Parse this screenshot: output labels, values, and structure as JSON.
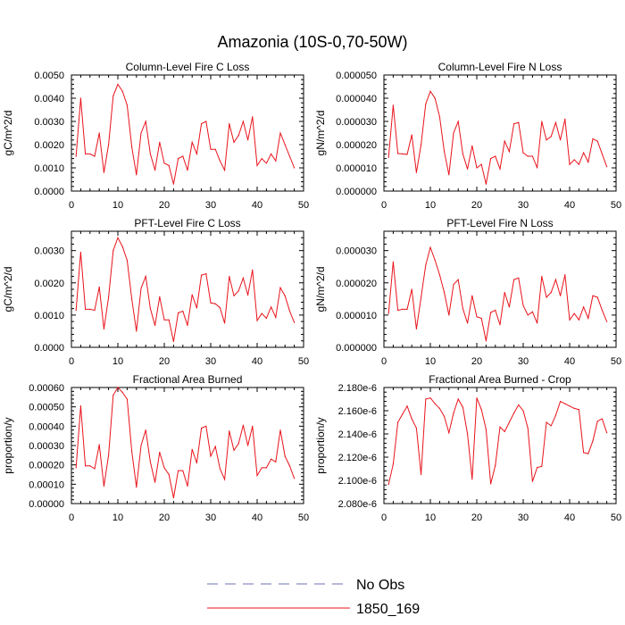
{
  "figure_title": "Amazonia (10S-0,70-50W)",
  "legend": [
    {
      "label": "No Obs",
      "color": "#6b6fb5",
      "dash": true
    },
    {
      "label": "1850_169",
      "color": "#e8131b",
      "dash": false
    }
  ],
  "chart_data": [
    {
      "type": "line",
      "title": "Column-Level Fire C Loss",
      "ylabel": "gC/m^2/d",
      "xlim": [
        0,
        50
      ],
      "ylim": [
        0,
        0.005
      ],
      "xticks": [
        0,
        10,
        20,
        30,
        40,
        50
      ],
      "yticks": [
        0,
        0.001,
        0.002,
        0.003,
        0.004,
        0.005
      ],
      "ytick_labels": [
        "0.0000",
        "0.0010",
        "0.0020",
        "0.0030",
        "0.0040",
        "0.0050"
      ],
      "series": [
        {
          "name": "1850_169",
          "color": "#e8131b",
          "x": [
            1,
            2,
            3,
            4,
            5,
            6,
            7,
            8,
            9,
            10,
            11,
            12,
            13,
            14,
            15,
            16,
            17,
            18,
            19,
            20,
            21,
            22,
            23,
            24,
            25,
            26,
            27,
            28,
            29,
            30,
            31,
            32,
            33,
            34,
            35,
            36,
            37,
            38,
            39,
            40,
            41,
            42,
            43,
            44,
            45,
            46,
            47,
            48
          ],
          "values": [
            0.0015,
            0.004,
            0.0016,
            0.0016,
            0.0015,
            0.0025,
            0.0008,
            0.002,
            0.0041,
            0.0046,
            0.0043,
            0.0037,
            0.0019,
            0.0007,
            0.0025,
            0.003,
            0.0016,
            0.0009,
            0.0021,
            0.0012,
            0.0011,
            0.0003,
            0.0014,
            0.0015,
            0.0009,
            0.0021,
            0.0016,
            0.0029,
            0.003,
            0.0018,
            0.0018,
            0.0013,
            0.0009,
            0.0029,
            0.0021,
            0.0024,
            0.003,
            0.0022,
            0.0032,
            0.0011,
            0.0014,
            0.0012,
            0.0016,
            0.0013,
            0.0025,
            0.002,
            0.0015,
            0.001
          ]
        }
      ]
    },
    {
      "type": "line",
      "title": "Column-Level Fire N Loss",
      "ylabel": "gN/m^2/d",
      "xlim": [
        0,
        50
      ],
      "ylim": [
        0,
        5e-05
      ],
      "xticks": [
        0,
        10,
        20,
        30,
        40,
        50
      ],
      "yticks": [
        0,
        1e-05,
        2e-05,
        3e-05,
        4e-05,
        5e-05
      ],
      "ytick_labels": [
        "0.000000",
        "0.000010",
        "0.000020",
        "0.000030",
        "0.000040",
        "0.000050"
      ],
      "series": [
        {
          "name": "1850_169",
          "color": "#e8131b",
          "x": [
            1,
            2,
            3,
            4,
            5,
            6,
            7,
            8,
            9,
            10,
            11,
            12,
            13,
            14,
            15,
            16,
            17,
            18,
            19,
            20,
            21,
            22,
            23,
            24,
            25,
            26,
            27,
            28,
            29,
            30,
            31,
            32,
            33,
            34,
            35,
            36,
            37,
            38,
            39,
            40,
            41,
            42,
            43,
            44,
            45,
            46,
            47,
            48
          ],
          "values": [
            1.45e-05,
            3.7e-05,
            1.62e-05,
            1.6e-05,
            1.58e-05,
            2.42e-05,
            8e-06,
            2e-05,
            3.75e-05,
            4.3e-05,
            4e-05,
            3.2e-05,
            1.7e-05,
            7e-06,
            2.5e-05,
            3e-05,
            1.6e-05,
            9.5e-06,
            1.95e-05,
            1e-05,
            1.15e-05,
            3e-06,
            1.4e-05,
            1.5e-05,
            9.5e-06,
            2.15e-05,
            1.7e-05,
            2.9e-05,
            2.95e-05,
            1.65e-05,
            1.5e-05,
            1.5e-05,
            1e-05,
            3e-05,
            2.2e-05,
            2.35e-05,
            2.95e-05,
            2.2e-05,
            3.1e-05,
            1.15e-05,
            1.35e-05,
            1.15e-05,
            1.65e-05,
            1.25e-05,
            2.25e-05,
            2.15e-05,
            1.6e-05,
            1.05e-05
          ]
        }
      ]
    },
    {
      "type": "line",
      "title": "PFT-Level Fire C Loss",
      "ylabel": "gC/m^2/d",
      "xlim": [
        0,
        50
      ],
      "ylim": [
        0,
        0.0036
      ],
      "xticks": [
        0,
        10,
        20,
        30,
        40,
        50
      ],
      "yticks": [
        0,
        0.001,
        0.002,
        0.003
      ],
      "ytick_labels": [
        "0.0000",
        "0.0010",
        "0.0020",
        "0.0030"
      ],
      "series": [
        {
          "name": "1850_169",
          "color": "#e8131b",
          "x": [
            1,
            2,
            3,
            4,
            5,
            6,
            7,
            8,
            9,
            10,
            11,
            12,
            13,
            14,
            15,
            16,
            17,
            18,
            19,
            20,
            21,
            22,
            23,
            24,
            25,
            26,
            27,
            28,
            29,
            30,
            31,
            32,
            33,
            34,
            35,
            36,
            37,
            38,
            39,
            40,
            41,
            42,
            43,
            44,
            45,
            46,
            47,
            48
          ],
          "values": [
            0.00115,
            0.00295,
            0.00118,
            0.00118,
            0.00115,
            0.00187,
            0.00057,
            0.00155,
            0.003,
            0.0034,
            0.00312,
            0.0027,
            0.0015,
            0.0005,
            0.00183,
            0.0022,
            0.0012,
            0.00068,
            0.00157,
            0.00085,
            0.00085,
            0.00018,
            0.00107,
            0.00112,
            0.00068,
            0.00163,
            0.00122,
            0.00224,
            0.00228,
            0.00138,
            0.00135,
            0.00123,
            0.00075,
            0.0022,
            0.0016,
            0.00175,
            0.00215,
            0.00162,
            0.0024,
            0.00083,
            0.00105,
            0.0009,
            0.00125,
            0.00093,
            0.00185,
            0.0016,
            0.00113,
            0.00077
          ]
        }
      ]
    },
    {
      "type": "line",
      "title": "PFT-Level Fire N Loss",
      "ylabel": "gN/m^2/d",
      "xlim": [
        0,
        50
      ],
      "ylim": [
        0,
        3.6e-05
      ],
      "xticks": [
        0,
        10,
        20,
        30,
        40,
        50
      ],
      "yticks": [
        0,
        1e-05,
        2e-05,
        3e-05
      ],
      "ytick_labels": [
        "0.000000",
        "0.000010",
        "0.000020",
        "0.000030"
      ],
      "series": [
        {
          "name": "1850_169",
          "color": "#e8131b",
          "x": [
            1,
            2,
            3,
            4,
            5,
            6,
            7,
            8,
            9,
            10,
            11,
            12,
            13,
            14,
            15,
            16,
            17,
            18,
            19,
            20,
            21,
            22,
            23,
            24,
            25,
            26,
            27,
            28,
            29,
            30,
            31,
            32,
            33,
            34,
            35,
            36,
            37,
            38,
            39,
            40,
            41,
            42,
            43,
            44,
            45,
            46,
            47,
            48
          ],
          "values": [
            1.05e-05,
            2.65e-05,
            1.15e-05,
            1.18e-05,
            1.18e-05,
            1.8e-05,
            5.7e-06,
            1.55e-05,
            2.55e-05,
            3.1e-05,
            2.7e-05,
            2.25e-05,
            1.7e-05,
            1e-05,
            1.95e-05,
            2.1e-05,
            1.2e-05,
            7.5e-06,
            1.6e-05,
            9.5e-06,
            9e-06,
            2e-06,
            1.08e-05,
            1.15e-05,
            7e-06,
            1.7e-05,
            1.25e-05,
            2.1e-05,
            2.15e-05,
            1.3e-05,
            1e-05,
            1.1e-05,
            7.5e-06,
            2.2e-05,
            1.55e-05,
            1.7e-05,
            2.1e-05,
            1.6e-05,
            2.25e-05,
            8.5e-06,
            1.05e-05,
            8.5e-06,
            1.25e-05,
            9e-06,
            1.6e-05,
            1.55e-05,
            1.15e-05,
            8e-06
          ]
        }
      ]
    },
    {
      "type": "line",
      "title": "Fractional Area Burned",
      "ylabel": "proportion/y",
      "xlim": [
        0,
        50
      ],
      "ylim": [
        0,
        0.0006
      ],
      "xticks": [
        0,
        10,
        20,
        30,
        40,
        50
      ],
      "yticks": [
        0,
        0.0001,
        0.0002,
        0.0003,
        0.0004,
        0.0005,
        0.0006
      ],
      "ytick_labels": [
        "0.00000",
        "0.00010",
        "0.00020",
        "0.00030",
        "0.00040",
        "0.00050",
        "0.00060"
      ],
      "series": [
        {
          "name": "1850_169",
          "color": "#e8131b",
          "x": [
            1,
            2,
            3,
            4,
            5,
            6,
            7,
            8,
            9,
            10,
            11,
            12,
            13,
            14,
            15,
            16,
            17,
            18,
            19,
            20,
            21,
            22,
            23,
            24,
            25,
            26,
            27,
            28,
            29,
            30,
            31,
            32,
            33,
            34,
            35,
            36,
            37,
            38,
            39,
            40,
            41,
            42,
            43,
            44,
            45,
            46,
            47,
            48
          ],
          "values": [
            0.000185,
            0.000505,
            0.000195,
            0.000195,
            0.00018,
            0.000305,
            9e-05,
            0.00025,
            0.00056,
            0.0006,
            0.000575,
            0.00054,
            0.00027,
            8.5e-05,
            0.0003,
            0.00038,
            0.000215,
            0.00011,
            0.000265,
            0.000185,
            0.00015,
            3e-05,
            0.00017,
            0.00017,
            9e-05,
            0.00028,
            0.00021,
            0.00039,
            0.0004,
            0.000245,
            0.000295,
            0.00018,
            0.000125,
            0.000375,
            0.000275,
            0.00031,
            0.000405,
            0.0003,
            0.0004,
            0.000145,
            0.000185,
            0.000185,
            0.00023,
            0.000215,
            0.00038,
            0.000245,
            0.000195,
            0.00013
          ]
        }
      ]
    },
    {
      "type": "line",
      "title": "Fractional Area Burned - Crop",
      "ylabel": "proportion/y",
      "xlim": [
        0,
        50
      ],
      "ylim": [
        2.08e-06,
        2.18e-06
      ],
      "xticks": [
        0,
        10,
        20,
        30,
        40,
        50
      ],
      "yticks": [
        2.08e-06,
        2.1e-06,
        2.12e-06,
        2.14e-06,
        2.16e-06,
        2.18e-06
      ],
      "ytick_labels": [
        "2.080e-6",
        "2.100e-6",
        "2.120e-6",
        "2.140e-6",
        "2.160e-6",
        "2.180e-6"
      ],
      "series": [
        {
          "name": "1850_169",
          "color": "#e8131b",
          "x": [
            1,
            2,
            3,
            4,
            5,
            6,
            7,
            8,
            9,
            10,
            11,
            12,
            13,
            14,
            15,
            16,
            17,
            18,
            19,
            20,
            21,
            22,
            23,
            24,
            25,
            26,
            27,
            28,
            29,
            30,
            31,
            32,
            33,
            34,
            35,
            36,
            37,
            38,
            39,
            40,
            41,
            42,
            43,
            44,
            45,
            46,
            47,
            48
          ],
          "values": [
            2.0965e-06,
            2.114e-06,
            2.15e-06,
            2.157e-06,
            2.164e-06,
            2.153e-06,
            2.145e-06,
            2.105e-06,
            2.17e-06,
            2.171e-06,
            2.166e-06,
            2.162e-06,
            2.155e-06,
            2.141e-06,
            2.158e-06,
            2.17e-06,
            2.163e-06,
            2.14e-06,
            2.101e-06,
            2.171e-06,
            2.161e-06,
            2.144e-06,
            2.097e-06,
            2.113e-06,
            2.146e-06,
            2.142e-06,
            2.15e-06,
            2.158e-06,
            2.165e-06,
            2.16e-06,
            2.145e-06,
            2.099e-06,
            2.111e-06,
            2.112e-06,
            2.15e-06,
            2.147e-06,
            2.156e-06,
            2.168e-06,
            2.166e-06,
            2.164e-06,
            2.162e-06,
            2.161e-06,
            2.124e-06,
            2.123e-06,
            2.134e-06,
            2.151e-06,
            2.153e-06,
            2.141e-06
          ]
        }
      ]
    }
  ]
}
